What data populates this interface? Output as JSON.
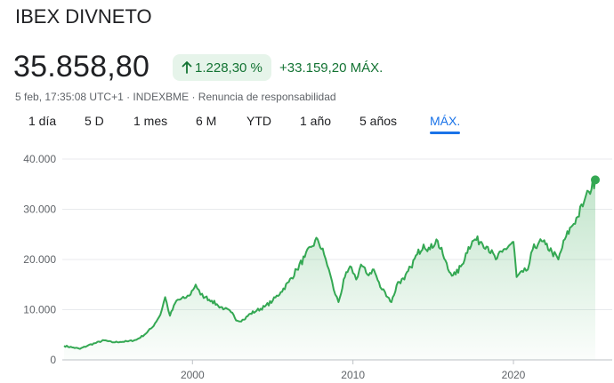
{
  "header": {
    "title": "IBEX DIVNETO",
    "price": "35.858,80",
    "change_pct": "1.228,30 %",
    "change_abs": "+33.159,20 MÁX.",
    "meta": {
      "timestamp": "5 feb, 17:35:08 UTC+1",
      "separator": " · ",
      "exchange": "INDEXBME",
      "disclaimer": "Renuncia de responsabilidad"
    }
  },
  "tabs": [
    {
      "label": "1 día",
      "active": false
    },
    {
      "label": "5 D",
      "active": false
    },
    {
      "label": "1 mes",
      "active": false
    },
    {
      "label": "6 M",
      "active": false
    },
    {
      "label": "YTD",
      "active": false
    },
    {
      "label": "1 año",
      "active": false
    },
    {
      "label": "5 años",
      "active": false
    },
    {
      "label": "MÁX.",
      "active": true
    }
  ],
  "colors": {
    "line": "#34a853",
    "badge_bg": "#e6f4ea",
    "positive_text": "#137333",
    "active_tab": "#1a73e8"
  },
  "icons": {
    "change_arrow": "arrow-up-icon"
  },
  "chart_data": {
    "type": "area",
    "title": "",
    "xlabel": "",
    "ylabel": "",
    "x_ticks": [
      2000,
      2010,
      2020
    ],
    "y_ticks": [
      0,
      10000,
      20000,
      30000,
      40000
    ],
    "y_tick_labels": [
      "0",
      "10.000",
      "20.000",
      "30.000",
      "40.000"
    ],
    "ylim": [
      0,
      40000
    ],
    "xlim": [
      1992,
      2025.1
    ],
    "grid": true,
    "series": [
      {
        "points": [
          [
            1992.0,
            2800
          ],
          [
            1992.5,
            2500
          ],
          [
            1993.0,
            2200
          ],
          [
            1993.5,
            2900
          ],
          [
            1994.0,
            3400
          ],
          [
            1994.5,
            3900
          ],
          [
            1995.0,
            3500
          ],
          [
            1995.5,
            3600
          ],
          [
            1996.0,
            3700
          ],
          [
            1996.5,
            4000
          ],
          [
            1997.0,
            5000
          ],
          [
            1997.5,
            6500
          ],
          [
            1998.0,
            9000
          ],
          [
            1998.3,
            12500
          ],
          [
            1998.6,
            8800
          ],
          [
            1999.0,
            11800
          ],
          [
            1999.5,
            12300
          ],
          [
            1999.8,
            12800
          ],
          [
            2000.2,
            15000
          ],
          [
            2000.5,
            13000
          ],
          [
            2000.8,
            12500
          ],
          [
            2001.2,
            11800
          ],
          [
            2001.6,
            10800
          ],
          [
            2002.0,
            10200
          ],
          [
            2002.4,
            9500
          ],
          [
            2002.8,
            7800
          ],
          [
            2003.2,
            8000
          ],
          [
            2003.6,
            9200
          ],
          [
            2004.0,
            9800
          ],
          [
            2004.5,
            10600
          ],
          [
            2005.0,
            11800
          ],
          [
            2005.5,
            13500
          ],
          [
            2006.0,
            15500
          ],
          [
            2006.5,
            18000
          ],
          [
            2007.0,
            20500
          ],
          [
            2007.4,
            22500
          ],
          [
            2007.8,
            24000
          ],
          [
            2008.2,
            21000
          ],
          [
            2008.5,
            18000
          ],
          [
            2008.8,
            14000
          ],
          [
            2009.1,
            11500
          ],
          [
            2009.5,
            16500
          ],
          [
            2009.9,
            18500
          ],
          [
            2010.2,
            16000
          ],
          [
            2010.5,
            19000
          ],
          [
            2010.9,
            17000
          ],
          [
            2011.3,
            18000
          ],
          [
            2011.7,
            14500
          ],
          [
            2012.0,
            13500
          ],
          [
            2012.4,
            11500
          ],
          [
            2012.8,
            15500
          ],
          [
            2013.2,
            16000
          ],
          [
            2013.6,
            18500
          ],
          [
            2014.0,
            21000
          ],
          [
            2014.4,
            23000
          ],
          [
            2014.8,
            22000
          ],
          [
            2015.2,
            24000
          ],
          [
            2015.6,
            21000
          ],
          [
            2016.0,
            17500
          ],
          [
            2016.4,
            17000
          ],
          [
            2016.8,
            19000
          ],
          [
            2017.2,
            22500
          ],
          [
            2017.6,
            24000
          ],
          [
            2018.0,
            23500
          ],
          [
            2018.4,
            22500
          ],
          [
            2018.9,
            20000
          ],
          [
            2019.3,
            21500
          ],
          [
            2019.8,
            23000
          ],
          [
            2020.0,
            23500
          ],
          [
            2020.2,
            16500
          ],
          [
            2020.6,
            17500
          ],
          [
            2020.9,
            18000
          ],
          [
            2021.2,
            22000
          ],
          [
            2021.6,
            23500
          ],
          [
            2022.0,
            23000
          ],
          [
            2022.4,
            21500
          ],
          [
            2022.8,
            20000
          ],
          [
            2023.2,
            24000
          ],
          [
            2023.6,
            26500
          ],
          [
            2024.0,
            28500
          ],
          [
            2024.4,
            31500
          ],
          [
            2024.7,
            33500
          ],
          [
            2025.1,
            35858.8
          ]
        ]
      }
    ]
  }
}
